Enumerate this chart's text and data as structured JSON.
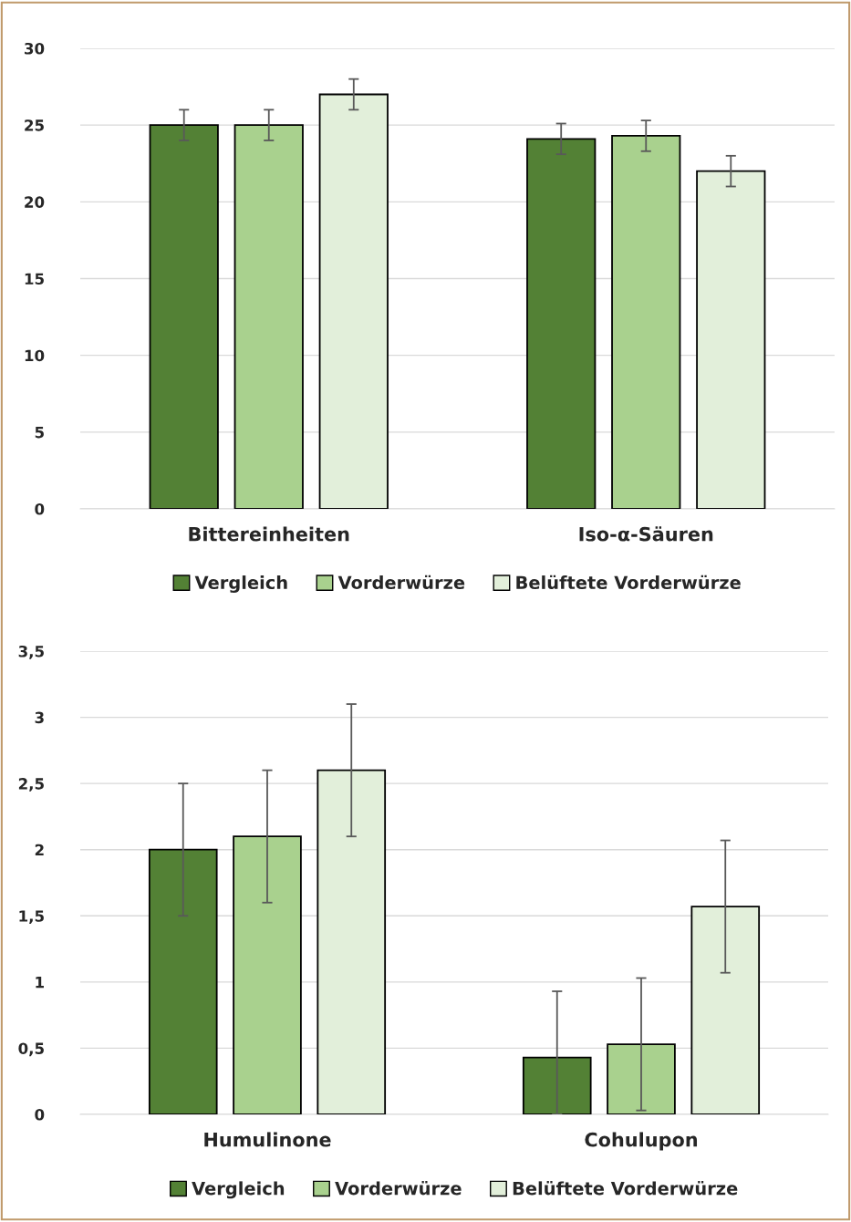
{
  "chart_data": [
    {
      "type": "bar",
      "categories": [
        "Bittereinheiten",
        "Iso-α-Säuren"
      ],
      "series": [
        {
          "name": "Vergleich",
          "color": "#538135",
          "values": [
            25,
            24.1
          ],
          "errors": [
            1,
            1
          ]
        },
        {
          "name": "Vorderwürze",
          "color": "#a9d18e",
          "values": [
            25,
            24.3
          ],
          "errors": [
            1,
            1
          ]
        },
        {
          "name": "Belüftete Vorderwürze",
          "color": "#e2efda",
          "values": [
            27,
            22
          ],
          "errors": [
            1,
            1
          ]
        }
      ],
      "ylim": [
        0,
        30
      ],
      "yticks": [
        0,
        5,
        10,
        15,
        20,
        25,
        30
      ],
      "grid": "y",
      "legend": "bottom"
    },
    {
      "type": "bar",
      "categories": [
        "Humulinone",
        "Cohulupon"
      ],
      "series": [
        {
          "name": "Vergleich",
          "color": "#538135",
          "values": [
            2.0,
            0.43
          ],
          "errors": [
            0.5,
            [
              0,
              0.93
            ]
          ]
        },
        {
          "name": "Vorderwürze",
          "color": "#a9d18e",
          "values": [
            2.1,
            0.53
          ],
          "errors": [
            0.5,
            0.5
          ]
        },
        {
          "name": "Belüftete Vorderwürze",
          "color": "#e2efda",
          "values": [
            2.6,
            1.57
          ],
          "errors": [
            0.5,
            0.5
          ]
        }
      ],
      "ylim": [
        0,
        3.5
      ],
      "yticks": [
        0,
        {
          "value": 0.5,
          "label": "0,5"
        },
        1,
        {
          "value": 1.5,
          "label": "1,5"
        },
        2,
        {
          "value": 2.5,
          "label": "2,5"
        },
        3,
        {
          "value": 3.5,
          "label": "3,5"
        }
      ],
      "grid": "y",
      "legend": "bottom"
    }
  ]
}
